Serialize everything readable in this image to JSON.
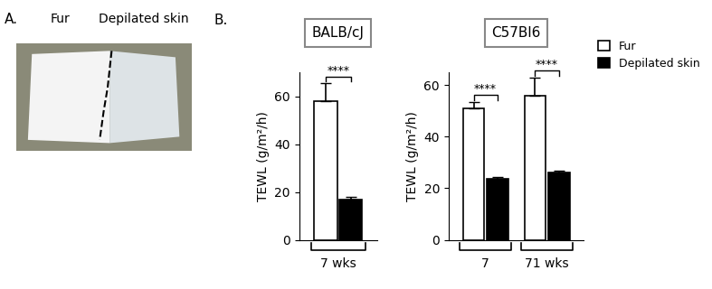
{
  "panel_a": {
    "label": "A.",
    "texts": [
      "Fur",
      "Depilated skin"
    ]
  },
  "panel_b": {
    "label": "B."
  },
  "chart_data": [
    {
      "type": "bar",
      "title": "BALB/cJ",
      "y_label": "TEWL (g/m²/h)",
      "categories": [
        "7 wks"
      ],
      "series": [
        {
          "name": "Fur",
          "color": "#ffffff",
          "values": [
            58
          ],
          "errors": [
            7.5
          ]
        },
        {
          "name": "Depilated skin",
          "color": "#000000",
          "values": [
            17
          ],
          "errors": [
            0.8
          ]
        }
      ],
      "significance": [
        "****"
      ],
      "ylim": [
        0,
        70
      ],
      "yticks": [
        0,
        20,
        40,
        60
      ]
    },
    {
      "type": "bar",
      "title": "C57Bl6",
      "y_label": "TEWL (g/m²/h)",
      "categories": [
        "7",
        "71 wks"
      ],
      "series": [
        {
          "name": "Fur",
          "color": "#ffffff",
          "values": [
            51,
            56
          ],
          "errors": [
            2.5,
            7
          ]
        },
        {
          "name": "Depilated skin",
          "color": "#000000",
          "values": [
            23.5,
            26
          ],
          "errors": [
            0.8,
            1
          ]
        }
      ],
      "significance": [
        "****",
        "****"
      ],
      "ylim": [
        0,
        65
      ],
      "yticks": [
        0,
        20,
        40,
        60
      ],
      "legend": "upper left"
    }
  ]
}
